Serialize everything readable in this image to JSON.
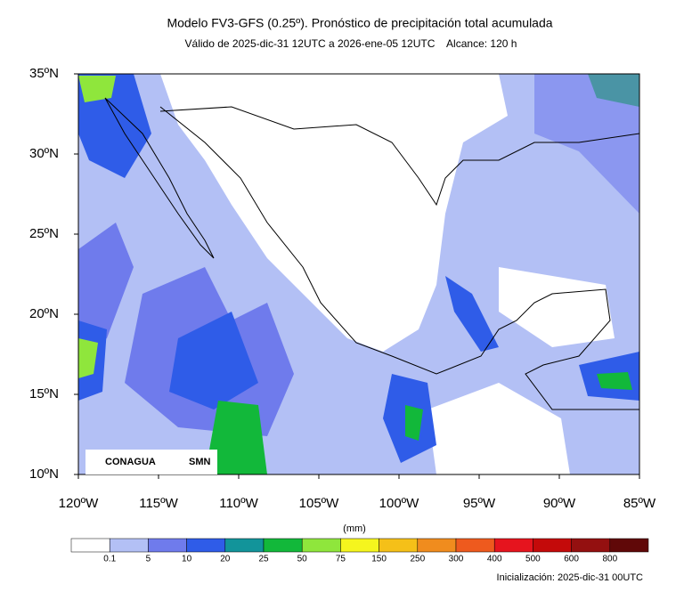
{
  "header": {
    "title": "Modelo FV3-GFS (0.25º). Pronóstico de precipitación total acumulada",
    "subtitle": "Válido de 2025-dic-31 12UTC a 2026-ene-05 12UTC    Alcance: 120 h"
  },
  "map": {
    "lat_labels": [
      "35ºN",
      "30ºN",
      "25ºN",
      "20ºN",
      "15ºN",
      "10ºN"
    ],
    "lon_labels": [
      "120ºW",
      "115ºW",
      "110ºW",
      "105ºW",
      "100ºW",
      "95ºW",
      "90ºW",
      "85ºW"
    ],
    "logos": [
      "CONAGUA",
      "SMN"
    ]
  },
  "legend": {
    "unit": "(mm)",
    "levels": [
      "0.1",
      "5",
      "10",
      "20",
      "25",
      "50",
      "75",
      "150",
      "250",
      "300",
      "400",
      "500",
      "600",
      "800"
    ],
    "colors": [
      "#ffffff",
      "#b3c0f5",
      "#6f7bec",
      "#2f5ce8",
      "#12949a",
      "#12b83a",
      "#8fe63c",
      "#f5f51e",
      "#f5c018",
      "#f08c1e",
      "#ee5a1e",
      "#e6141e",
      "#c40a0a",
      "#941010",
      "#600808"
    ]
  },
  "footer": {
    "initialization": "Inicialización: 2025-dic-31 00UTC"
  }
}
